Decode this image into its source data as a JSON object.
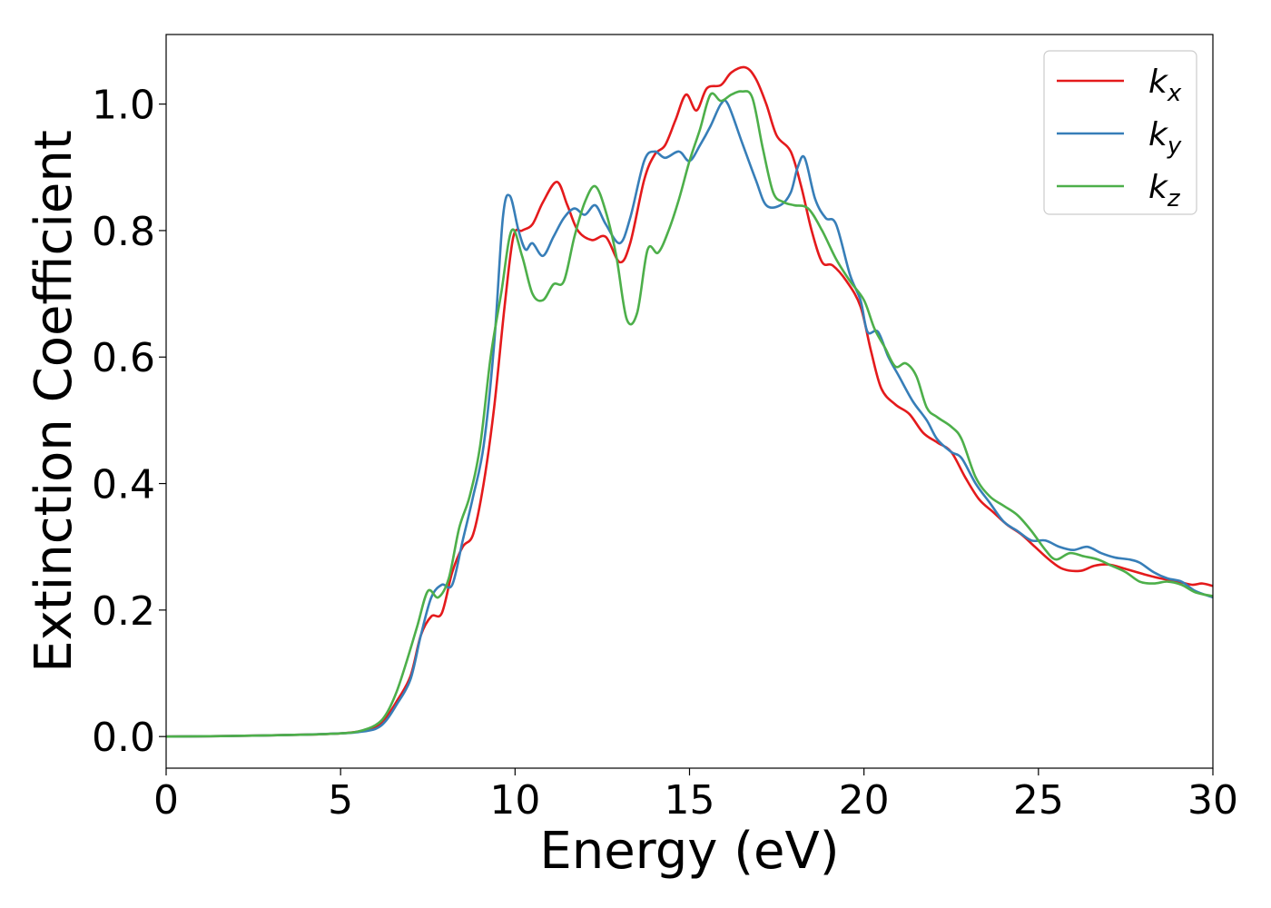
{
  "chart_data": {
    "type": "line",
    "title": "",
    "xlabel": "Energy (eV)",
    "ylabel": "Extinction Coefficient",
    "xlim": [
      0,
      30
    ],
    "ylim": [
      -0.05,
      1.11
    ],
    "xticks": [
      0,
      5,
      10,
      15,
      20,
      25,
      30
    ],
    "xtick_labels": [
      "0",
      "5",
      "10",
      "15",
      "20",
      "25",
      "30"
    ],
    "yticks": [
      0.0,
      0.2,
      0.4,
      0.6,
      0.8,
      1.0
    ],
    "ytick_labels": [
      "0.0",
      "0.2",
      "0.4",
      "0.6",
      "0.8",
      "1.0"
    ],
    "grid": false,
    "legend_position": "top-right",
    "series": [
      {
        "name": "k",
        "subscript": "x",
        "color": "#e41a1c",
        "points": [
          [
            0,
            0.0
          ],
          [
            2,
            0.001
          ],
          [
            4,
            0.003
          ],
          [
            5,
            0.005
          ],
          [
            5.5,
            0.008
          ],
          [
            6,
            0.015
          ],
          [
            6.3,
            0.03
          ],
          [
            6.6,
            0.055
          ],
          [
            7,
            0.095
          ],
          [
            7.3,
            0.16
          ],
          [
            7.6,
            0.19
          ],
          [
            7.9,
            0.195
          ],
          [
            8.2,
            0.26
          ],
          [
            8.5,
            0.3
          ],
          [
            8.8,
            0.32
          ],
          [
            9.1,
            0.4
          ],
          [
            9.4,
            0.52
          ],
          [
            9.7,
            0.68
          ],
          [
            9.95,
            0.79
          ],
          [
            10.2,
            0.8
          ],
          [
            10.5,
            0.81
          ],
          [
            10.8,
            0.845
          ],
          [
            11.2,
            0.877
          ],
          [
            11.5,
            0.84
          ],
          [
            11.8,
            0.8
          ],
          [
            12.2,
            0.785
          ],
          [
            12.6,
            0.79
          ],
          [
            13.0,
            0.75
          ],
          [
            13.3,
            0.78
          ],
          [
            13.7,
            0.88
          ],
          [
            14.0,
            0.92
          ],
          [
            14.3,
            0.935
          ],
          [
            14.6,
            0.975
          ],
          [
            14.9,
            1.015
          ],
          [
            15.2,
            0.99
          ],
          [
            15.5,
            1.025
          ],
          [
            15.9,
            1.03
          ],
          [
            16.2,
            1.05
          ],
          [
            16.6,
            1.058
          ],
          [
            16.9,
            1.04
          ],
          [
            17.2,
            1.0
          ],
          [
            17.5,
            0.95
          ],
          [
            17.9,
            0.925
          ],
          [
            18.2,
            0.87
          ],
          [
            18.5,
            0.8
          ],
          [
            18.8,
            0.75
          ],
          [
            19.1,
            0.745
          ],
          [
            19.5,
            0.72
          ],
          [
            19.9,
            0.68
          ],
          [
            20.2,
            0.61
          ],
          [
            20.5,
            0.55
          ],
          [
            20.9,
            0.525
          ],
          [
            21.3,
            0.51
          ],
          [
            21.7,
            0.48
          ],
          [
            22.1,
            0.465
          ],
          [
            22.5,
            0.45
          ],
          [
            22.9,
            0.41
          ],
          [
            23.3,
            0.375
          ],
          [
            23.7,
            0.355
          ],
          [
            24.1,
            0.335
          ],
          [
            24.5,
            0.32
          ],
          [
            24.9,
            0.3
          ],
          [
            25.3,
            0.28
          ],
          [
            25.7,
            0.265
          ],
          [
            26.2,
            0.262
          ],
          [
            26.6,
            0.27
          ],
          [
            27.0,
            0.272
          ],
          [
            27.5,
            0.265
          ],
          [
            28.0,
            0.257
          ],
          [
            28.5,
            0.25
          ],
          [
            29.0,
            0.245
          ],
          [
            29.4,
            0.24
          ],
          [
            29.7,
            0.242
          ],
          [
            30,
            0.238
          ]
        ]
      },
      {
        "name": "k",
        "subscript": "y",
        "color": "#377eb8",
        "points": [
          [
            0,
            0.0
          ],
          [
            2,
            0.001
          ],
          [
            4,
            0.003
          ],
          [
            5,
            0.005
          ],
          [
            5.5,
            0.007
          ],
          [
            6,
            0.012
          ],
          [
            6.3,
            0.025
          ],
          [
            6.6,
            0.05
          ],
          [
            7,
            0.09
          ],
          [
            7.3,
            0.16
          ],
          [
            7.6,
            0.22
          ],
          [
            7.9,
            0.24
          ],
          [
            8.2,
            0.24
          ],
          [
            8.5,
            0.31
          ],
          [
            8.8,
            0.38
          ],
          [
            9.1,
            0.46
          ],
          [
            9.4,
            0.62
          ],
          [
            9.65,
            0.82
          ],
          [
            9.85,
            0.855
          ],
          [
            10.1,
            0.8
          ],
          [
            10.3,
            0.77
          ],
          [
            10.5,
            0.78
          ],
          [
            10.8,
            0.76
          ],
          [
            11.1,
            0.79
          ],
          [
            11.4,
            0.82
          ],
          [
            11.7,
            0.835
          ],
          [
            12.0,
            0.825
          ],
          [
            12.3,
            0.84
          ],
          [
            12.6,
            0.81
          ],
          [
            13.0,
            0.78
          ],
          [
            13.3,
            0.82
          ],
          [
            13.7,
            0.91
          ],
          [
            14.0,
            0.925
          ],
          [
            14.3,
            0.915
          ],
          [
            14.7,
            0.925
          ],
          [
            15.0,
            0.91
          ],
          [
            15.3,
            0.935
          ],
          [
            15.6,
            0.965
          ],
          [
            15.9,
            1.0
          ],
          [
            16.1,
            1.0
          ],
          [
            16.5,
            0.94
          ],
          [
            16.9,
            0.88
          ],
          [
            17.2,
            0.84
          ],
          [
            17.6,
            0.84
          ],
          [
            17.9,
            0.86
          ],
          [
            18.1,
            0.9
          ],
          [
            18.3,
            0.915
          ],
          [
            18.6,
            0.85
          ],
          [
            18.9,
            0.82
          ],
          [
            19.2,
            0.81
          ],
          [
            19.6,
            0.73
          ],
          [
            19.9,
            0.69
          ],
          [
            20.1,
            0.64
          ],
          [
            20.4,
            0.64
          ],
          [
            20.7,
            0.6
          ],
          [
            21.0,
            0.57
          ],
          [
            21.4,
            0.53
          ],
          [
            21.8,
            0.5
          ],
          [
            22.1,
            0.47
          ],
          [
            22.5,
            0.45
          ],
          [
            22.8,
            0.44
          ],
          [
            23.2,
            0.4
          ],
          [
            23.6,
            0.37
          ],
          [
            24.0,
            0.34
          ],
          [
            24.4,
            0.325
          ],
          [
            24.8,
            0.31
          ],
          [
            25.2,
            0.31
          ],
          [
            25.6,
            0.3
          ],
          [
            26.0,
            0.295
          ],
          [
            26.4,
            0.3
          ],
          [
            26.8,
            0.29
          ],
          [
            27.2,
            0.283
          ],
          [
            27.6,
            0.28
          ],
          [
            27.9,
            0.275
          ],
          [
            28.3,
            0.26
          ],
          [
            28.7,
            0.25
          ],
          [
            29.1,
            0.245
          ],
          [
            29.5,
            0.23
          ],
          [
            30,
            0.22
          ]
        ]
      },
      {
        "name": "k",
        "subscript": "z",
        "color": "#4daf4a",
        "points": [
          [
            0,
            0.0
          ],
          [
            2,
            0.001
          ],
          [
            4,
            0.003
          ],
          [
            5,
            0.005
          ],
          [
            5.5,
            0.008
          ],
          [
            6,
            0.018
          ],
          [
            6.3,
            0.035
          ],
          [
            6.6,
            0.07
          ],
          [
            6.9,
            0.12
          ],
          [
            7.2,
            0.175
          ],
          [
            7.5,
            0.23
          ],
          [
            7.8,
            0.22
          ],
          [
            8.1,
            0.25
          ],
          [
            8.4,
            0.33
          ],
          [
            8.7,
            0.38
          ],
          [
            9.0,
            0.46
          ],
          [
            9.3,
            0.6
          ],
          [
            9.6,
            0.7
          ],
          [
            9.9,
            0.8
          ],
          [
            10.2,
            0.76
          ],
          [
            10.5,
            0.7
          ],
          [
            10.8,
            0.69
          ],
          [
            11.1,
            0.715
          ],
          [
            11.4,
            0.72
          ],
          [
            11.7,
            0.79
          ],
          [
            12.0,
            0.845
          ],
          [
            12.3,
            0.87
          ],
          [
            12.6,
            0.83
          ],
          [
            12.9,
            0.76
          ],
          [
            13.2,
            0.66
          ],
          [
            13.5,
            0.67
          ],
          [
            13.8,
            0.77
          ],
          [
            14.1,
            0.765
          ],
          [
            14.4,
            0.8
          ],
          [
            14.7,
            0.85
          ],
          [
            15.0,
            0.91
          ],
          [
            15.3,
            0.96
          ],
          [
            15.6,
            1.015
          ],
          [
            15.9,
            1.005
          ],
          [
            16.2,
            1.015
          ],
          [
            16.5,
            1.02
          ],
          [
            16.8,
            1.01
          ],
          [
            17.1,
            0.93
          ],
          [
            17.4,
            0.86
          ],
          [
            17.7,
            0.845
          ],
          [
            18.0,
            0.84
          ],
          [
            18.4,
            0.835
          ],
          [
            18.8,
            0.8
          ],
          [
            19.2,
            0.755
          ],
          [
            19.6,
            0.72
          ],
          [
            20.0,
            0.69
          ],
          [
            20.3,
            0.645
          ],
          [
            20.6,
            0.615
          ],
          [
            20.9,
            0.585
          ],
          [
            21.2,
            0.59
          ],
          [
            21.5,
            0.57
          ],
          [
            21.8,
            0.52
          ],
          [
            22.1,
            0.505
          ],
          [
            22.5,
            0.49
          ],
          [
            22.8,
            0.47
          ],
          [
            23.2,
            0.41
          ],
          [
            23.6,
            0.38
          ],
          [
            24.0,
            0.365
          ],
          [
            24.4,
            0.35
          ],
          [
            24.8,
            0.325
          ],
          [
            25.2,
            0.295
          ],
          [
            25.5,
            0.28
          ],
          [
            25.9,
            0.29
          ],
          [
            26.3,
            0.285
          ],
          [
            26.7,
            0.28
          ],
          [
            27.1,
            0.27
          ],
          [
            27.5,
            0.26
          ],
          [
            27.9,
            0.245
          ],
          [
            28.3,
            0.242
          ],
          [
            28.7,
            0.245
          ],
          [
            29.1,
            0.24
          ],
          [
            29.5,
            0.228
          ],
          [
            30,
            0.222
          ]
        ]
      }
    ]
  }
}
